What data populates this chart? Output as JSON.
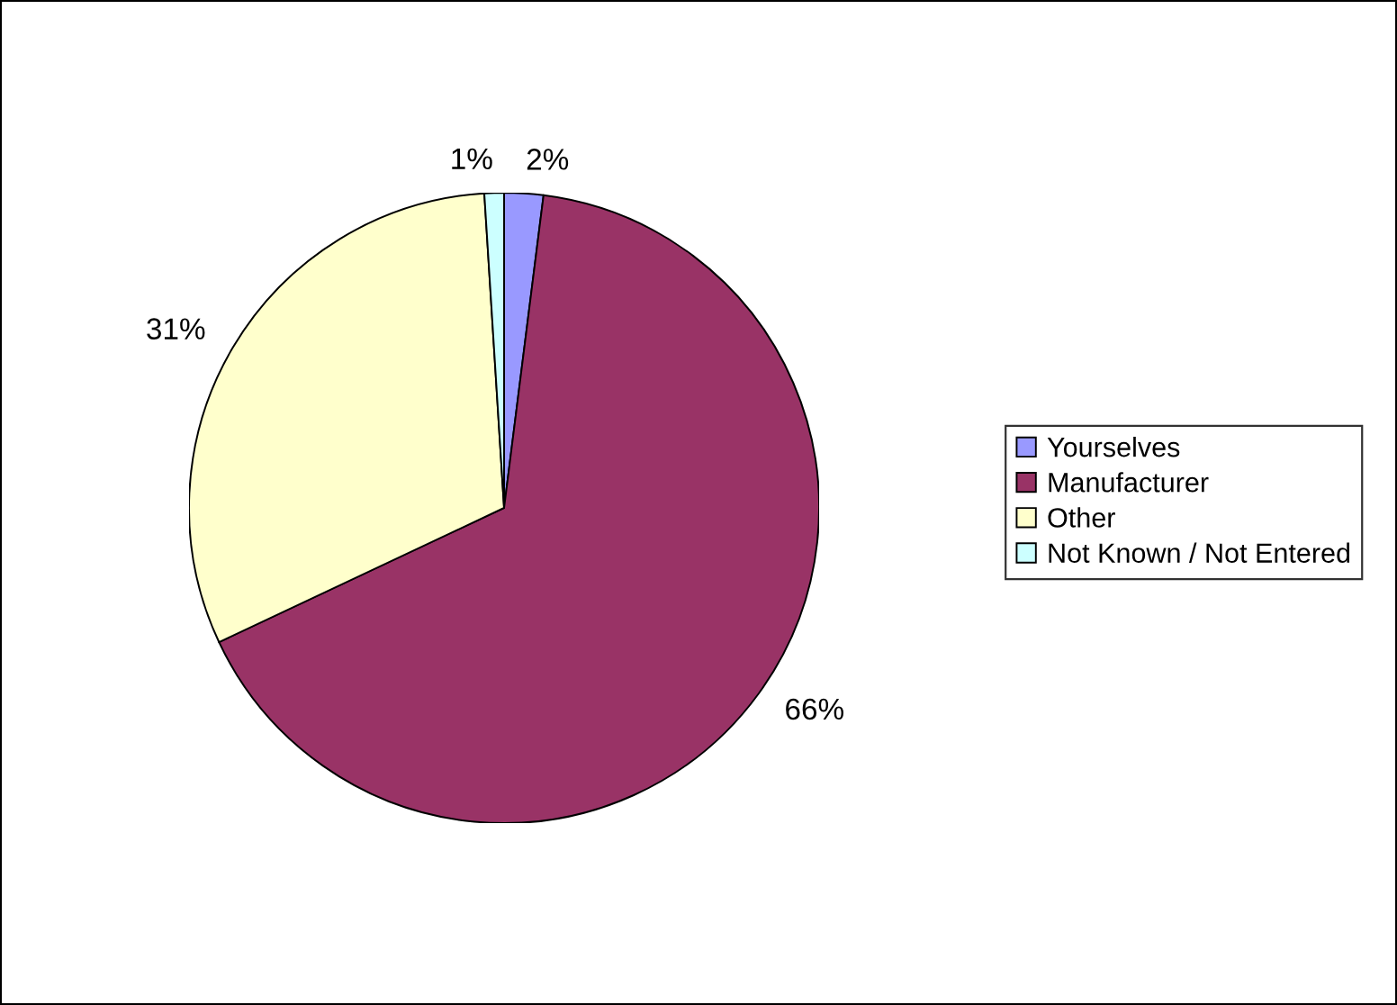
{
  "chart_data": {
    "type": "pie",
    "categories": [
      "Yourselves",
      "Manufacturer",
      "Other",
      "Not Known / Not Entered"
    ],
    "values": [
      2,
      66,
      31,
      1
    ],
    "colors": [
      "#9999ff",
      "#993366",
      "#ffffcc",
      "#ccffff"
    ],
    "value_labels": [
      "2%",
      "66%",
      "31%",
      "1%"
    ],
    "legend": "right"
  }
}
